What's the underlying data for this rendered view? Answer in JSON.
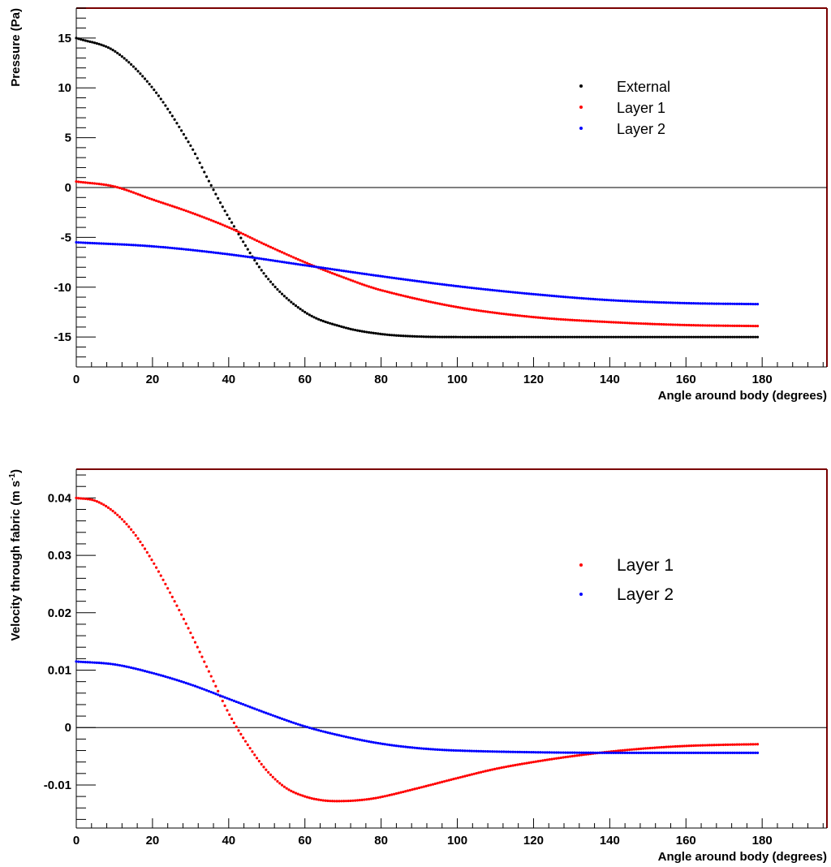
{
  "chart_data": [
    {
      "type": "scatter",
      "xlabel": "Angle around body (degrees)",
      "ylabel": "Pressure (Pa)",
      "ylabel_superscript": "",
      "xlim": [
        0,
        197
      ],
      "ylim": [
        -18,
        18
      ],
      "xticks": [
        0,
        20,
        40,
        60,
        80,
        100,
        120,
        140,
        160,
        180
      ],
      "yticks": [
        -15,
        -10,
        -5,
        0,
        5,
        10,
        15
      ],
      "zero_line": true,
      "legend_placement": "top-right",
      "series": [
        {
          "name": "External",
          "color": "#000000",
          "x": [
            0,
            10,
            20,
            30,
            35,
            40,
            50,
            60,
            70,
            80,
            90,
            100,
            120,
            140,
            160,
            179
          ],
          "y": [
            15,
            13.7,
            10.0,
            4.2,
            0.5,
            -3.0,
            -9.0,
            -12.5,
            -14.0,
            -14.7,
            -14.95,
            -15,
            -15,
            -15,
            -15,
            -15
          ]
        },
        {
          "name": "Layer 1",
          "color": "#ff0000",
          "x": [
            0,
            10,
            20,
            30,
            40,
            50,
            60,
            70,
            80,
            100,
            120,
            140,
            160,
            179
          ],
          "y": [
            0.6,
            0.1,
            -1.2,
            -2.5,
            -4.0,
            -5.8,
            -7.5,
            -9.0,
            -10.3,
            -12.0,
            -13.0,
            -13.5,
            -13.8,
            -13.9
          ]
        },
        {
          "name": "Layer 2",
          "color": "#0000ff",
          "x": [
            0,
            20,
            40,
            60,
            80,
            100,
            120,
            140,
            160,
            179
          ],
          "y": [
            -5.5,
            -5.9,
            -6.7,
            -7.8,
            -8.9,
            -9.9,
            -10.7,
            -11.3,
            -11.6,
            -11.7
          ]
        }
      ]
    },
    {
      "type": "scatter",
      "xlabel": "Angle around body (degrees)",
      "ylabel": "Velocity through fabric (m s",
      "ylabel_superscript": "-1",
      "ylabel_close": ")",
      "xlim": [
        0,
        197
      ],
      "ylim": [
        -0.0175,
        0.045
      ],
      "xticks": [
        0,
        20,
        40,
        60,
        80,
        100,
        120,
        140,
        160,
        180
      ],
      "yticks": [
        -0.01,
        0,
        0.01,
        0.02,
        0.03,
        0.04
      ],
      "ytick_labels": [
        "-0.01",
        "0",
        "0.01",
        "0.02",
        "0.03",
        "0.04"
      ],
      "zero_line": true,
      "legend_placement": "top-right",
      "series": [
        {
          "name": "Layer 1",
          "color": "#ff0000",
          "x": [
            0,
            5,
            10,
            15,
            20,
            25,
            30,
            35,
            40,
            45,
            50,
            55,
            60,
            65,
            70,
            75,
            80,
            90,
            100,
            110,
            120,
            130,
            140,
            150,
            160,
            170,
            179
          ],
          "y": [
            0.04,
            0.0395,
            0.0375,
            0.034,
            0.029,
            0.023,
            0.0165,
            0.0095,
            0.0025,
            -0.003,
            -0.0075,
            -0.0105,
            -0.012,
            -0.0127,
            -0.0128,
            -0.0126,
            -0.0121,
            -0.0105,
            -0.0088,
            -0.0072,
            -0.006,
            -0.005,
            -0.0042,
            -0.0036,
            -0.0032,
            -0.003,
            -0.0029
          ]
        },
        {
          "name": "Layer 2",
          "color": "#0000ff",
          "x": [
            0,
            10,
            20,
            30,
            40,
            50,
            60,
            70,
            80,
            90,
            100,
            120,
            140,
            160,
            179
          ],
          "y": [
            0.0115,
            0.011,
            0.0095,
            0.0075,
            0.005,
            0.0025,
            0.0002,
            -0.0015,
            -0.0028,
            -0.0036,
            -0.004,
            -0.0043,
            -0.0044,
            -0.0044,
            -0.0044
          ]
        }
      ]
    }
  ]
}
